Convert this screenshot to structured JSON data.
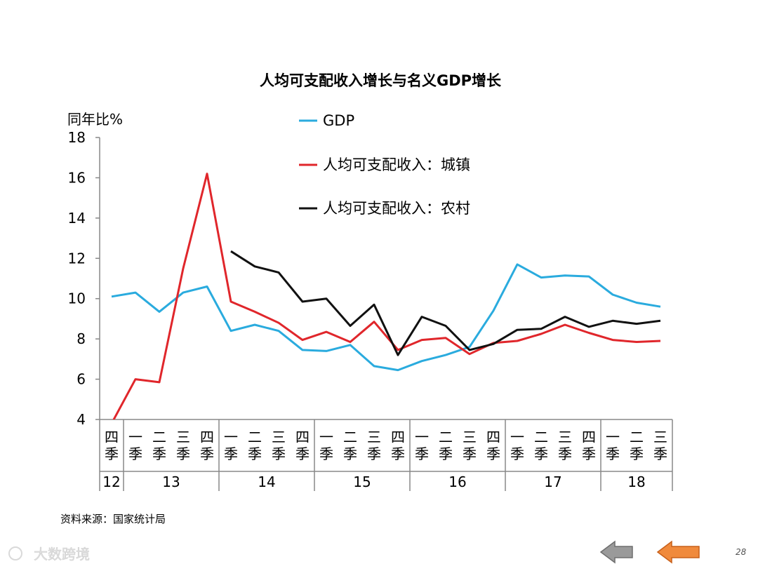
{
  "chart_data": {
    "type": "line",
    "title": "人均可支配收入增长与名义GDP增长",
    "ylabel": "同年比%",
    "ylim": [
      4,
      18
    ],
    "yticks": [
      4,
      6,
      8,
      10,
      12,
      14,
      16,
      18
    ],
    "quarter_labels": [
      "四季",
      "一季",
      "二季",
      "三季",
      "四季",
      "一季",
      "二季",
      "三季",
      "四季",
      "一季",
      "二季",
      "三季",
      "四季",
      "一季",
      "二季",
      "三季",
      "四季",
      "一季",
      "二季",
      "三季",
      "四季",
      "一季",
      "二季",
      "三季"
    ],
    "year_groups": [
      {
        "label": "12",
        "start": 0,
        "end": 0
      },
      {
        "label": "13",
        "start": 1,
        "end": 4
      },
      {
        "label": "14",
        "start": 5,
        "end": 8
      },
      {
        "label": "15",
        "start": 9,
        "end": 12
      },
      {
        "label": "16",
        "start": 13,
        "end": 16
      },
      {
        "label": "17",
        "start": 17,
        "end": 20
      },
      {
        "label": "18",
        "start": 21,
        "end": 23
      }
    ],
    "series": [
      {
        "name": "GDP",
        "color": "#2AABDE",
        "values": [
          10.1,
          10.3,
          9.35,
          10.3,
          10.6,
          8.4,
          8.7,
          8.4,
          7.45,
          7.4,
          7.7,
          6.65,
          6.45,
          6.9,
          7.2,
          7.6,
          9.4,
          11.7,
          11.05,
          11.15,
          11.1,
          10.2,
          9.8,
          9.6
        ]
      },
      {
        "name": "人均可支配收入：城镇",
        "color": "#E0262B",
        "values": [
          3.8,
          6.0,
          5.85,
          11.5,
          16.2,
          9.85,
          9.35,
          8.8,
          7.95,
          8.35,
          7.85,
          8.85,
          7.45,
          7.95,
          8.05,
          7.25,
          7.8,
          7.9,
          8.25,
          8.7,
          8.3,
          7.95,
          7.85,
          7.9
        ]
      },
      {
        "name": "人均可支配收入：农村",
        "color": "#111111",
        "values": [
          null,
          null,
          null,
          null,
          null,
          12.35,
          11.6,
          11.3,
          9.85,
          10.0,
          8.65,
          9.7,
          7.2,
          9.1,
          8.65,
          7.45,
          7.75,
          8.45,
          8.5,
          9.1,
          8.6,
          8.9,
          8.75,
          8.9
        ]
      }
    ]
  },
  "source_note": "资料来源：国家统计局",
  "page_number": "28",
  "watermark": "大数跨境",
  "nav": {
    "back_icon": "arrow-left-gray-icon",
    "prev_icon": "arrow-left-orange-icon"
  }
}
